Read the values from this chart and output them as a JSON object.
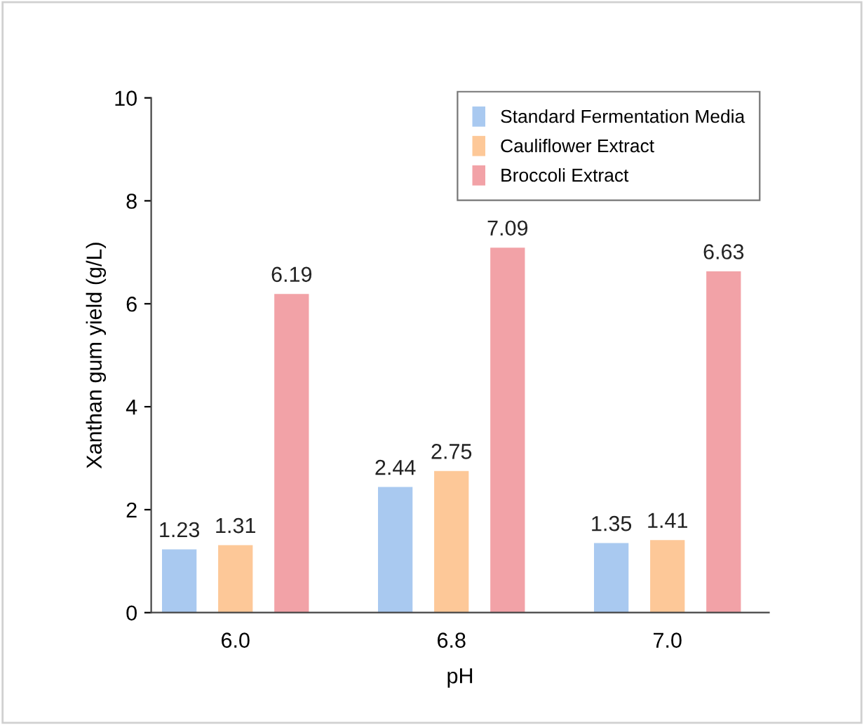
{
  "chart_data": {
    "type": "bar",
    "xlabel": "pH",
    "ylabel": "Xanthan gum yield (g/L)",
    "categories": [
      "6.0",
      "6.8",
      "7.0"
    ],
    "series": [
      {
        "name": "Standard Fermentation Media",
        "color": "#a9c9f0",
        "values": [
          1.23,
          2.44,
          1.35
        ]
      },
      {
        "name": "Cauliflower Extract",
        "color": "#fdc898",
        "values": [
          1.31,
          2.75,
          1.41
        ]
      },
      {
        "name": "Broccoli Extract",
        "color": "#f2a2a7",
        "values": [
          6.19,
          7.09,
          6.63
        ]
      }
    ],
    "ylim": [
      0,
      10
    ],
    "yticks": [
      0,
      2,
      4,
      6,
      8,
      10
    ],
    "data_labels": true,
    "grid": false,
    "legend": "top right"
  }
}
